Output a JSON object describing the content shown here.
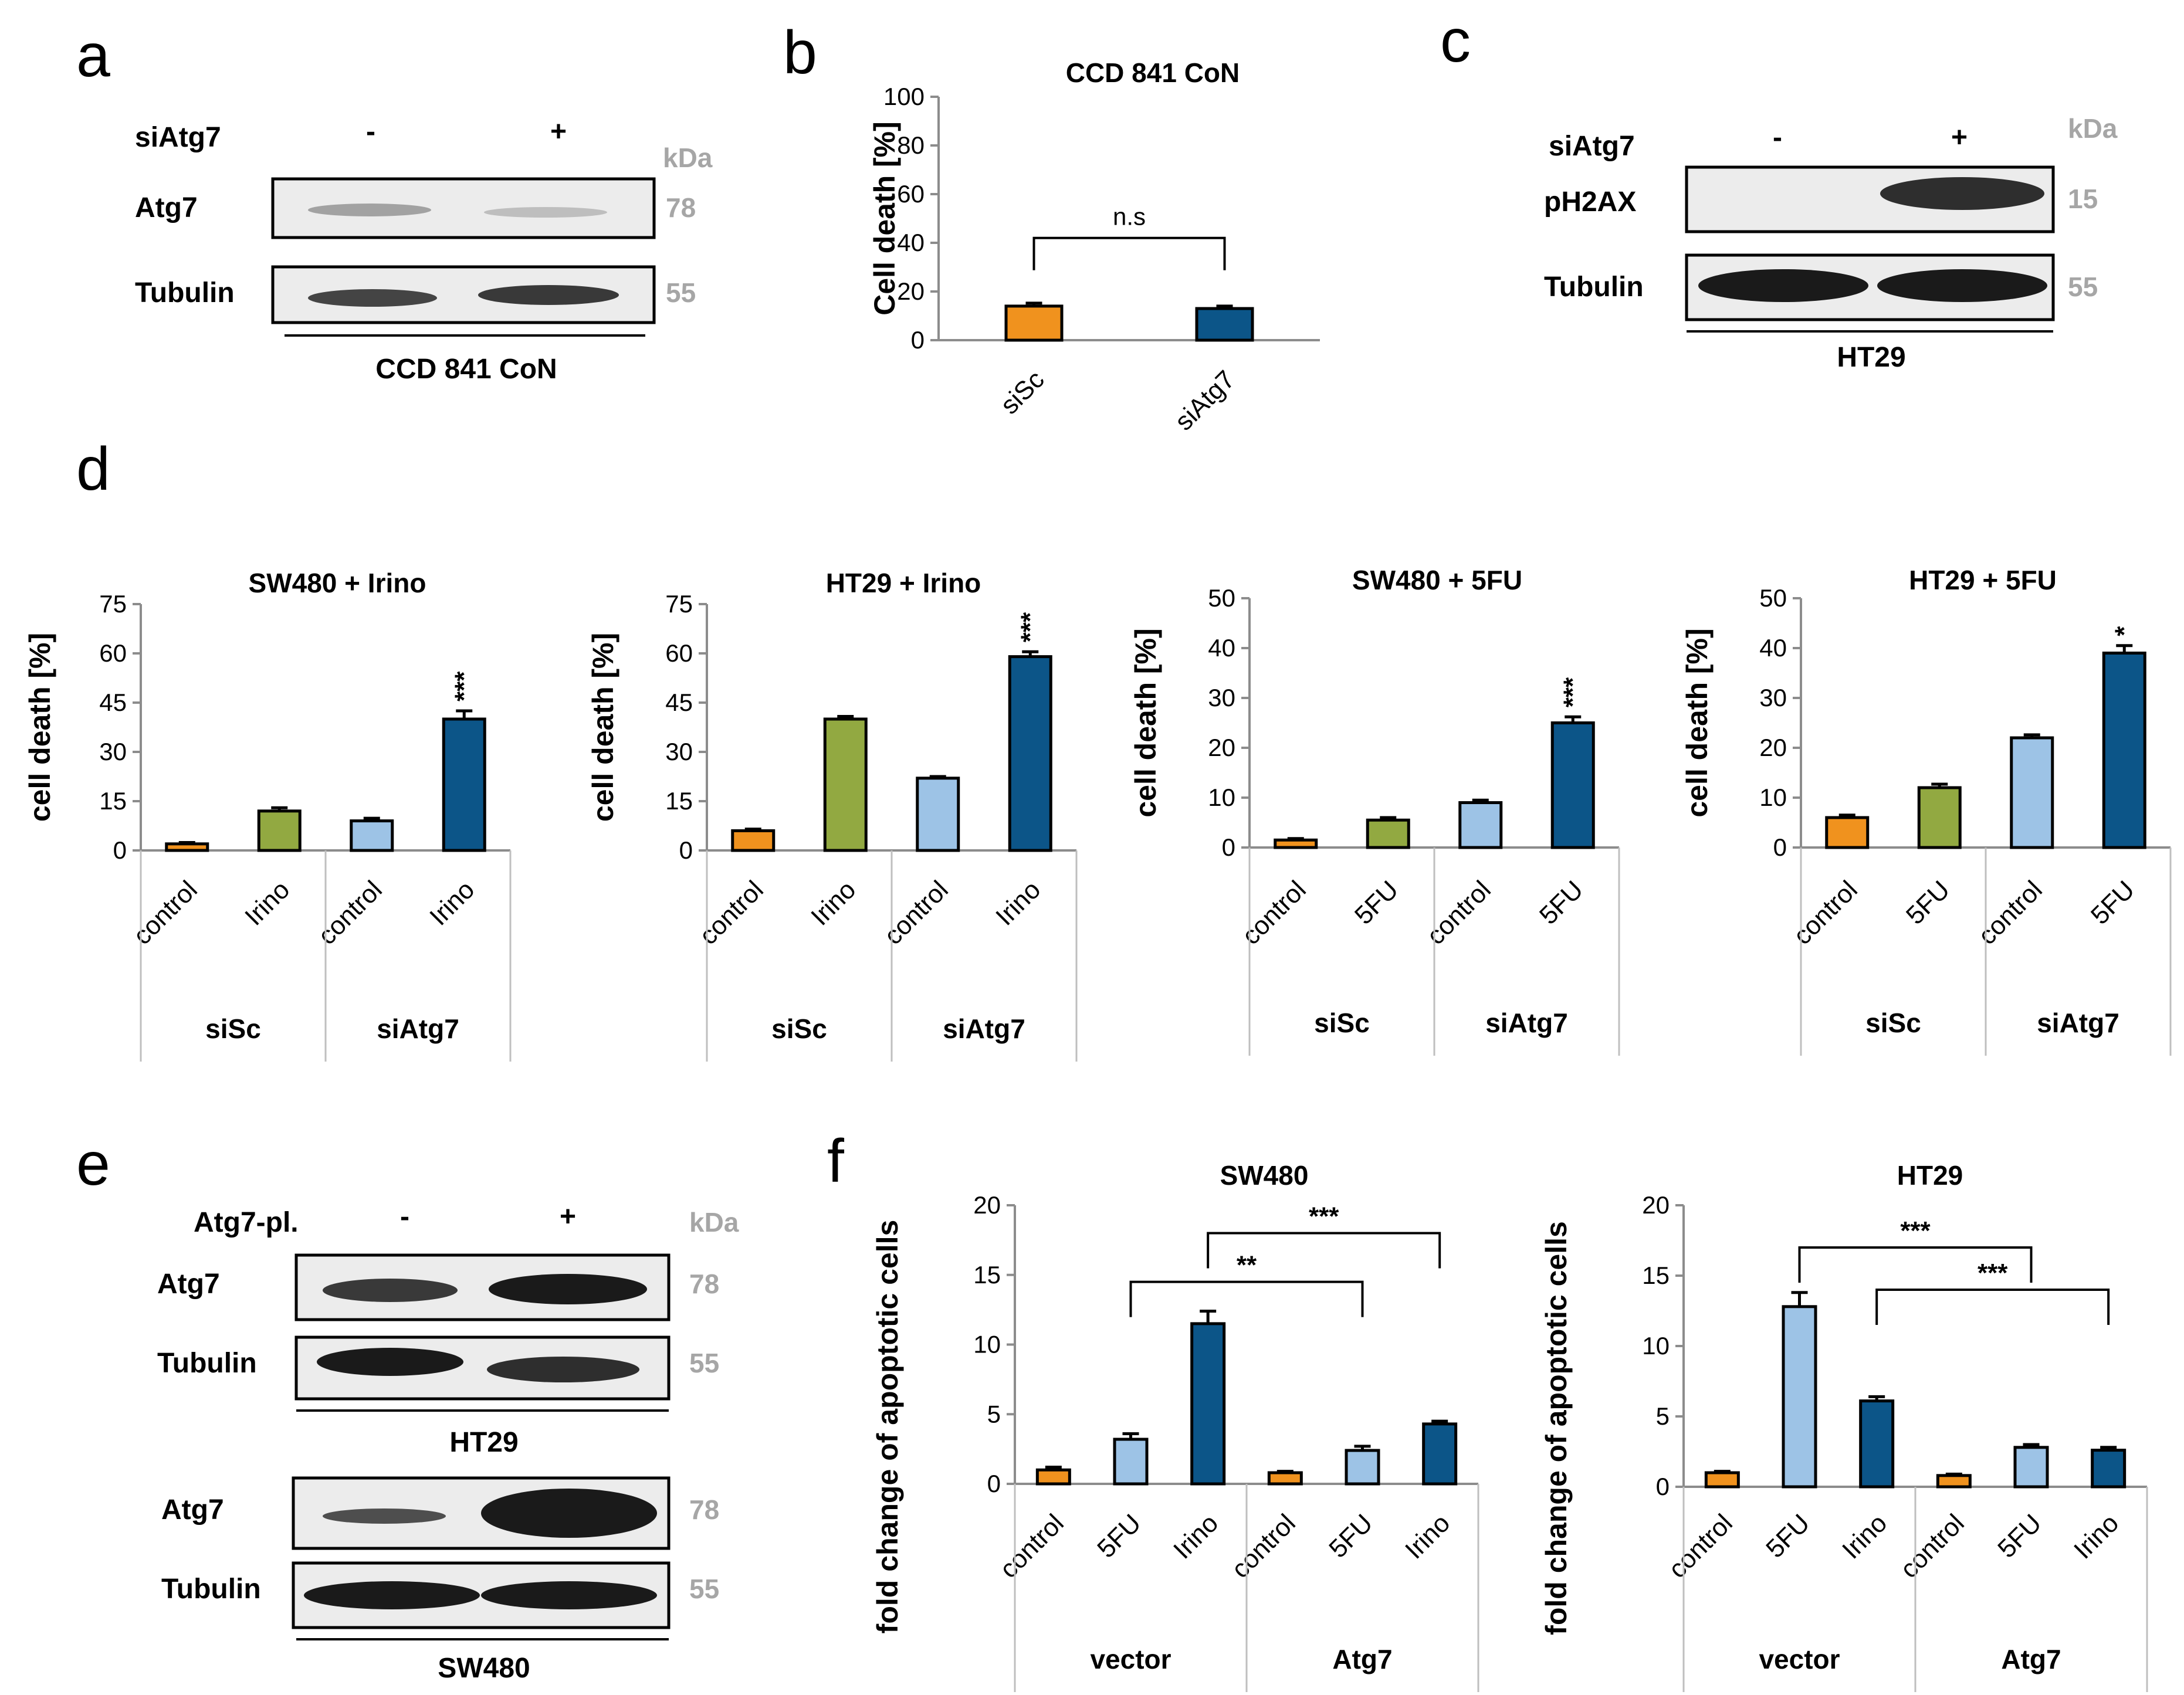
{
  "colors": {
    "orange": "#f0921e",
    "green": "#92a941",
    "lightblue": "#9dc3e6",
    "darkblue": "#0c5588"
  },
  "panel_letters": [
    "a",
    "b",
    "c",
    "d",
    "e",
    "f"
  ],
  "blot_a": {
    "treatment_label": "siAtg7",
    "lane_signs": [
      "-",
      "+"
    ],
    "unit": "kDa",
    "rows": [
      {
        "label": "Atg7",
        "kda": "78"
      },
      {
        "label": "Tubulin",
        "kda": "55"
      }
    ],
    "cell_line": "CCD 841 CoN"
  },
  "blot_c": {
    "treatment_label": "siAtg7",
    "lane_signs": [
      "-",
      "+"
    ],
    "unit": "kDa",
    "rows": [
      {
        "label": "pH2AX",
        "kda": "15"
      },
      {
        "label": "Tubulin",
        "kda": "55"
      }
    ],
    "cell_line": "HT29"
  },
  "blot_e": {
    "treatment_label": "Atg7-pl.",
    "lane_signs": [
      "-",
      "+"
    ],
    "unit": "kDa",
    "top": {
      "rows": [
        {
          "label": "Atg7",
          "kda": "78"
        },
        {
          "label": "Tubulin",
          "kda": "55"
        }
      ],
      "cell_line": "HT29"
    },
    "bottom": {
      "rows": [
        {
          "label": "Atg7",
          "kda": "78"
        },
        {
          "label": "Tubulin",
          "kda": "55"
        }
      ],
      "cell_line": "SW480"
    }
  },
  "chart_data": [
    {
      "id": "b",
      "type": "bar",
      "title": "CCD 841 CoN",
      "ylabel": "Cell death [%]",
      "ylim": [
        0,
        100
      ],
      "yticks": [
        0,
        20,
        40,
        60,
        80,
        100
      ],
      "categories": [
        "siSc",
        "siAtg7"
      ],
      "values": [
        14,
        13
      ],
      "errors": [
        1.2,
        1.0
      ],
      "bar_colors": [
        "orange",
        "darkblue"
      ],
      "annotations": [
        {
          "text": "n.s",
          "from": 0,
          "to": 1,
          "y": 42
        }
      ]
    },
    {
      "id": "d1",
      "type": "bar",
      "title": "SW480 + Irino",
      "ylabel": "cell death [%]",
      "ylim": [
        0,
        75
      ],
      "yticks": [
        0,
        15,
        30,
        45,
        60,
        75
      ],
      "categories": [
        "control",
        "Irino",
        "control",
        "Irino"
      ],
      "groups": [
        {
          "label": "siSc",
          "span": 2
        },
        {
          "label": "siAtg7",
          "span": 2
        }
      ],
      "values": [
        2,
        12,
        9,
        40
      ],
      "errors": [
        0.4,
        1.0,
        0.8,
        2.5
      ],
      "bar_colors": [
        "orange",
        "green",
        "lightblue",
        "darkblue"
      ],
      "stars": [
        "",
        "",
        "",
        "***"
      ]
    },
    {
      "id": "d2",
      "type": "bar",
      "title": "HT29 + Irino",
      "ylabel": "cell death [%]",
      "ylim": [
        0,
        75
      ],
      "yticks": [
        0,
        15,
        30,
        45,
        60,
        75
      ],
      "categories": [
        "control",
        "Irino",
        "control",
        "Irino"
      ],
      "groups": [
        {
          "label": "siSc",
          "span": 2
        },
        {
          "label": "siAtg7",
          "span": 2
        }
      ],
      "values": [
        6,
        40,
        22,
        59
      ],
      "errors": [
        0.5,
        0.8,
        0.5,
        1.5
      ],
      "bar_colors": [
        "orange",
        "green",
        "lightblue",
        "darkblue"
      ],
      "stars": [
        "",
        "",
        "",
        "***"
      ]
    },
    {
      "id": "d3",
      "type": "bar",
      "title": "SW480 + 5FU",
      "ylabel": "cell death [%]",
      "ylim": [
        0,
        50
      ],
      "yticks": [
        0,
        10,
        20,
        30,
        40,
        50
      ],
      "categories": [
        "control",
        "5FU",
        "control",
        "5FU"
      ],
      "groups": [
        {
          "label": "siSc",
          "span": 2
        },
        {
          "label": "siAtg7",
          "span": 2
        }
      ],
      "values": [
        1.5,
        5.5,
        9,
        25
      ],
      "errors": [
        0.3,
        0.5,
        0.5,
        1.2
      ],
      "bar_colors": [
        "orange",
        "green",
        "lightblue",
        "darkblue"
      ],
      "stars": [
        "",
        "",
        "",
        "***"
      ]
    },
    {
      "id": "d4",
      "type": "bar",
      "title": "HT29 + 5FU",
      "ylabel": "cell death [%]",
      "ylim": [
        0,
        50
      ],
      "yticks": [
        0,
        10,
        20,
        30,
        40,
        50
      ],
      "categories": [
        "control",
        "5FU",
        "control",
        "5FU"
      ],
      "groups": [
        {
          "label": "siSc",
          "span": 2
        },
        {
          "label": "siAtg7",
          "span": 2
        }
      ],
      "values": [
        6,
        12,
        22,
        39
      ],
      "errors": [
        0.5,
        0.7,
        0.6,
        1.5
      ],
      "bar_colors": [
        "orange",
        "green",
        "lightblue",
        "darkblue"
      ],
      "stars": [
        "",
        "",
        "",
        "*"
      ]
    },
    {
      "id": "f1",
      "type": "bar",
      "title": "SW480",
      "ylabel": "fold change of apoptotic cells",
      "ylim": [
        0,
        20
      ],
      "yticks": [
        0,
        5,
        10,
        15,
        20
      ],
      "categories": [
        "control",
        "5FU",
        "Irino",
        "control",
        "5FU",
        "Irino"
      ],
      "groups": [
        {
          "label": "vector",
          "span": 3
        },
        {
          "label": "Atg7",
          "span": 3
        }
      ],
      "values": [
        1,
        3.2,
        11.5,
        0.8,
        2.4,
        4.3
      ],
      "errors": [
        0.2,
        0.4,
        0.9,
        0.1,
        0.3,
        0.2
      ],
      "bar_colors": [
        "orange",
        "lightblue",
        "darkblue",
        "orange",
        "lightblue",
        "darkblue"
      ],
      "brackets": [
        {
          "text": "**",
          "from": 1,
          "to": 4,
          "y": 14.5
        },
        {
          "text": "***",
          "from": 2,
          "to": 5,
          "y": 18
        }
      ]
    },
    {
      "id": "f2",
      "type": "bar",
      "title": "HT29",
      "ylabel": "fold change of apoptotic cells",
      "ylim": [
        0,
        20
      ],
      "yticks": [
        0,
        5,
        10,
        15,
        20
      ],
      "categories": [
        "control",
        "5FU",
        "Irino",
        "control",
        "5FU",
        "Irino"
      ],
      "groups": [
        {
          "label": "vector",
          "span": 3
        },
        {
          "label": "Atg7",
          "span": 3
        }
      ],
      "values": [
        1,
        12.8,
        6.1,
        0.8,
        2.8,
        2.6
      ],
      "errors": [
        0.1,
        1.0,
        0.3,
        0.1,
        0.2,
        0.2
      ],
      "bar_colors": [
        "orange",
        "lightblue",
        "darkblue",
        "orange",
        "lightblue",
        "darkblue"
      ],
      "brackets": [
        {
          "text": "***",
          "from": 1,
          "to": 4,
          "y": 17
        },
        {
          "text": "***",
          "from": 2,
          "to": 5,
          "y": 14
        }
      ]
    }
  ]
}
